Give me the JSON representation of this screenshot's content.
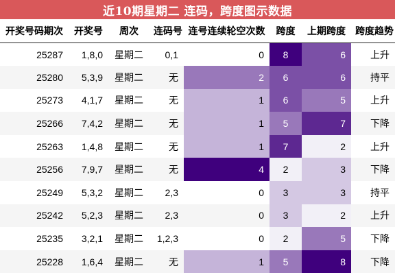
{
  "title": "近10期星期二 连码，跨度图示数据",
  "headers": [
    "开奖号码期次",
    "开奖号",
    "周次",
    "连码号",
    "连号连续轮空次数",
    "跨度",
    "上期跨度",
    "跨度趋势"
  ],
  "rows": [
    {
      "issue": "25287",
      "number": "1,8,0",
      "weekday": "星期二",
      "consecutive": "0,1",
      "skip": 0,
      "span": 8,
      "prev_span": 6,
      "trend": "上升"
    },
    {
      "issue": "25280",
      "number": "5,3,9",
      "weekday": "星期二",
      "consecutive": "无",
      "skip": 2,
      "span": 6,
      "prev_span": 6,
      "trend": "持平"
    },
    {
      "issue": "25273",
      "number": "4,1,7",
      "weekday": "星期二",
      "consecutive": "无",
      "skip": 1,
      "span": 6,
      "prev_span": 5,
      "trend": "上升"
    },
    {
      "issue": "25266",
      "number": "7,4,2",
      "weekday": "星期二",
      "consecutive": "无",
      "skip": 1,
      "span": 5,
      "prev_span": 7,
      "trend": "下降"
    },
    {
      "issue": "25263",
      "number": "1,4,8",
      "weekday": "星期二",
      "consecutive": "无",
      "skip": 1,
      "span": 7,
      "prev_span": 2,
      "trend": "上升"
    },
    {
      "issue": "25256",
      "number": "7,9,7",
      "weekday": "星期二",
      "consecutive": "无",
      "skip": 4,
      "span": 2,
      "prev_span": 3,
      "trend": "下降"
    },
    {
      "issue": "25249",
      "number": "5,3,2",
      "weekday": "星期二",
      "consecutive": "2,3",
      "skip": 0,
      "span": 3,
      "prev_span": 3,
      "trend": "持平"
    },
    {
      "issue": "25242",
      "number": "5,2,3",
      "weekday": "星期二",
      "consecutive": "2,3",
      "skip": 0,
      "span": 3,
      "prev_span": 2,
      "trend": "上升"
    },
    {
      "issue": "25235",
      "number": "3,2,1",
      "weekday": "星期二",
      "consecutive": "1,2,3",
      "skip": 0,
      "span": 2,
      "prev_span": 5,
      "trend": "下降"
    },
    {
      "issue": "25228",
      "number": "1,6,4",
      "weekday": "星期二",
      "consecutive": "无",
      "skip": 1,
      "span": 5,
      "prev_span": 8,
      "trend": "下降"
    }
  ],
  "heat_colors": {
    "low": "#f2f0f7",
    "high": "#3f007d"
  }
}
